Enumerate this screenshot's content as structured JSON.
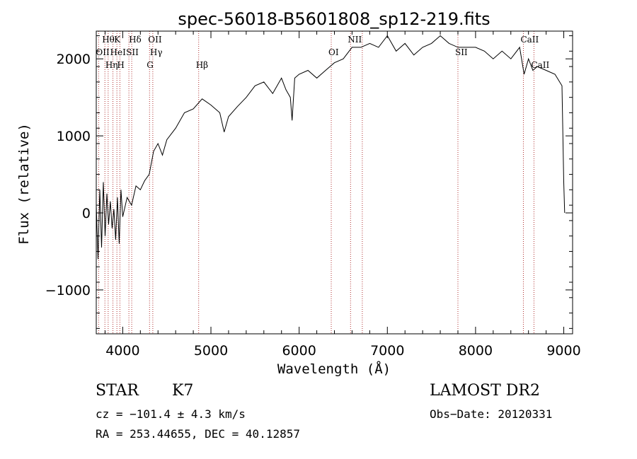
{
  "chart_data": {
    "type": "line",
    "title": "spec-56018-B5601808_sp12-219.fits",
    "xlabel": "Wavelength (Å)",
    "ylabel": "Flux (relative)",
    "xlim": [
      3700,
      9100
    ],
    "ylim": [
      -1570,
      2360
    ],
    "xticks": [
      4000,
      5000,
      6000,
      7000,
      8000,
      9000
    ],
    "yticks": [
      -1000,
      0,
      1000,
      2000
    ],
    "ytick_labels": [
      "−1000",
      "0",
      "1000",
      "2000"
    ],
    "grid": false,
    "series": [
      {
        "name": "spectrum",
        "points": [
          [
            3700,
            100
          ],
          [
            3720,
            -600
          ],
          [
            3740,
            300
          ],
          [
            3760,
            -450
          ],
          [
            3780,
            400
          ],
          [
            3800,
            -300
          ],
          [
            3820,
            250
          ],
          [
            3840,
            -150
          ],
          [
            3860,
            150
          ],
          [
            3880,
            -200
          ],
          [
            3900,
            50
          ],
          [
            3920,
            -350
          ],
          [
            3940,
            200
          ],
          [
            3960,
            -400
          ],
          [
            3980,
            300
          ],
          [
            4000,
            -50
          ],
          [
            4050,
            200
          ],
          [
            4100,
            100
          ],
          [
            4150,
            350
          ],
          [
            4200,
            300
          ],
          [
            4250,
            420
          ],
          [
            4300,
            500
          ],
          [
            4350,
            800
          ],
          [
            4400,
            900
          ],
          [
            4450,
            750
          ],
          [
            4500,
            950
          ],
          [
            4600,
            1100
          ],
          [
            4700,
            1300
          ],
          [
            4800,
            1350
          ],
          [
            4900,
            1480
          ],
          [
            5000,
            1400
          ],
          [
            5100,
            1300
          ],
          [
            5150,
            1050
          ],
          [
            5200,
            1250
          ],
          [
            5300,
            1380
          ],
          [
            5400,
            1500
          ],
          [
            5500,
            1650
          ],
          [
            5600,
            1700
          ],
          [
            5700,
            1550
          ],
          [
            5800,
            1750
          ],
          [
            5850,
            1600
          ],
          [
            5900,
            1500
          ],
          [
            5920,
            1200
          ],
          [
            5950,
            1750
          ],
          [
            6000,
            1800
          ],
          [
            6100,
            1850
          ],
          [
            6200,
            1750
          ],
          [
            6300,
            1850
          ],
          [
            6400,
            1950
          ],
          [
            6500,
            2000
          ],
          [
            6600,
            2150
          ],
          [
            6700,
            2150
          ],
          [
            6800,
            2200
          ],
          [
            6900,
            2150
          ],
          [
            7000,
            2300
          ],
          [
            7100,
            2100
          ],
          [
            7200,
            2200
          ],
          [
            7300,
            2050
          ],
          [
            7400,
            2150
          ],
          [
            7500,
            2200
          ],
          [
            7600,
            2300
          ],
          [
            7700,
            2200
          ],
          [
            7800,
            2150
          ],
          [
            7900,
            2150
          ],
          [
            8000,
            2150
          ],
          [
            8100,
            2100
          ],
          [
            8200,
            2000
          ],
          [
            8300,
            2100
          ],
          [
            8400,
            2000
          ],
          [
            8500,
            2150
          ],
          [
            8550,
            1800
          ],
          [
            8600,
            2000
          ],
          [
            8650,
            1850
          ],
          [
            8700,
            1900
          ],
          [
            8800,
            1850
          ],
          [
            8900,
            1800
          ],
          [
            8980,
            1650
          ],
          [
            9000,
            400
          ],
          [
            9010,
            0
          ]
        ]
      }
    ],
    "spectral_lines": [
      {
        "label": "Hθ",
        "wl": 3798,
        "row": 1
      },
      {
        "label": "K",
        "wl": 3934,
        "row": 1
      },
      {
        "label": "Hδ",
        "wl": 4102,
        "row": 1
      },
      {
        "label": "OII",
        "wl": 4320,
        "row": 1
      },
      {
        "label": "NII",
        "wl": 6583,
        "row": 1
      },
      {
        "label": "CaII",
        "wl": 8542,
        "row": 1
      },
      {
        "label": "OII",
        "wl": 3727,
        "row": 2
      },
      {
        "label": "HeI",
        "wl": 3889,
        "row": 2
      },
      {
        "label": "SII",
        "wl": 4070,
        "row": 2
      },
      {
        "label": "Hγ",
        "wl": 4341,
        "row": 2
      },
      {
        "label": "OI",
        "wl": 6364,
        "row": 2
      },
      {
        "label": "SII",
        "wl": 7800,
        "row": 2
      },
      {
        "label": "Hη",
        "wl": 3835,
        "row": 3
      },
      {
        "label": "H",
        "wl": 3968,
        "row": 3
      },
      {
        "label": "G",
        "wl": 4304,
        "row": 3
      },
      {
        "label": "Hβ",
        "wl": 4861,
        "row": 3
      },
      {
        "label": "CaII",
        "wl": 8662,
        "row": 3
      }
    ],
    "line_markers_wl": [
      3727,
      3798,
      3835,
      3889,
      3934,
      3968,
      4070,
      4102,
      4304,
      4341,
      4861,
      6364,
      6583,
      6716,
      7800,
      8542,
      8662
    ],
    "line_color": "#b03030"
  },
  "info": {
    "class": "STAR",
    "subclass": "K7",
    "survey": "LAMOST DR2",
    "cz": "cz = −101.4 ± 4.3 km/s",
    "obs_date": "Obs−Date: 20120331",
    "coords": "RA = 253.44655, DEC =  40.12857"
  }
}
